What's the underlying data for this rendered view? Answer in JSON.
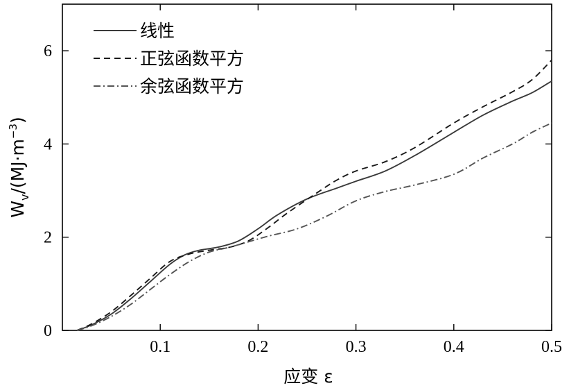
{
  "chart_data": {
    "type": "line",
    "xlabel": "应变 ε",
    "ylabel": "Wv/(MJ·m⁻³)",
    "ylabel_parts": {
      "main": "W",
      "sub": "v",
      "unit": "/(MJ·m",
      "sup": "−3",
      "close": ")"
    },
    "xlim": [
      0.0,
      0.5
    ],
    "ylim": [
      0,
      7
    ],
    "xticks": [
      0.1,
      0.2,
      0.3,
      0.4,
      0.5
    ],
    "xtick_labels": [
      "0.1",
      "0.2",
      "0.3",
      "0.4",
      "0.5"
    ],
    "yticks": [
      0,
      2,
      4,
      6
    ],
    "ytick_labels": [
      "0",
      "2",
      "4",
      "6"
    ],
    "grid": false,
    "legend_position": "top-left",
    "series": [
      {
        "name": "线性",
        "style": "solid",
        "color": "#3a3a3a",
        "points": [
          [
            0.015,
            0.0
          ],
          [
            0.03,
            0.12
          ],
          [
            0.05,
            0.35
          ],
          [
            0.07,
            0.68
          ],
          [
            0.09,
            1.05
          ],
          [
            0.11,
            1.42
          ],
          [
            0.125,
            1.62
          ],
          [
            0.14,
            1.72
          ],
          [
            0.16,
            1.79
          ],
          [
            0.18,
            1.92
          ],
          [
            0.2,
            2.18
          ],
          [
            0.22,
            2.48
          ],
          [
            0.25,
            2.82
          ],
          [
            0.28,
            3.05
          ],
          [
            0.3,
            3.2
          ],
          [
            0.33,
            3.42
          ],
          [
            0.36,
            3.75
          ],
          [
            0.4,
            4.25
          ],
          [
            0.43,
            4.62
          ],
          [
            0.46,
            4.92
          ],
          [
            0.48,
            5.1
          ],
          [
            0.5,
            5.35
          ]
        ]
      },
      {
        "name": "正弦函数平方",
        "style": "dashed",
        "color": "#1a1a1a",
        "points": [
          [
            0.015,
            0.0
          ],
          [
            0.03,
            0.14
          ],
          [
            0.05,
            0.4
          ],
          [
            0.07,
            0.75
          ],
          [
            0.09,
            1.12
          ],
          [
            0.11,
            1.48
          ],
          [
            0.13,
            1.64
          ],
          [
            0.15,
            1.72
          ],
          [
            0.17,
            1.78
          ],
          [
            0.19,
            1.92
          ],
          [
            0.21,
            2.2
          ],
          [
            0.23,
            2.52
          ],
          [
            0.26,
            2.95
          ],
          [
            0.28,
            3.22
          ],
          [
            0.3,
            3.42
          ],
          [
            0.33,
            3.62
          ],
          [
            0.36,
            3.92
          ],
          [
            0.4,
            4.45
          ],
          [
            0.43,
            4.8
          ],
          [
            0.46,
            5.12
          ],
          [
            0.48,
            5.38
          ],
          [
            0.5,
            5.8
          ]
        ]
      },
      {
        "name": "余弦函数平方",
        "style": "dashdot",
        "color": "#555555",
        "points": [
          [
            0.015,
            0.0
          ],
          [
            0.03,
            0.1
          ],
          [
            0.05,
            0.3
          ],
          [
            0.07,
            0.56
          ],
          [
            0.09,
            0.88
          ],
          [
            0.11,
            1.2
          ],
          [
            0.13,
            1.48
          ],
          [
            0.15,
            1.68
          ],
          [
            0.17,
            1.78
          ],
          [
            0.19,
            1.9
          ],
          [
            0.21,
            2.02
          ],
          [
            0.24,
            2.18
          ],
          [
            0.27,
            2.45
          ],
          [
            0.3,
            2.78
          ],
          [
            0.33,
            2.98
          ],
          [
            0.36,
            3.12
          ],
          [
            0.4,
            3.35
          ],
          [
            0.43,
            3.7
          ],
          [
            0.46,
            4.0
          ],
          [
            0.48,
            4.25
          ],
          [
            0.5,
            4.45
          ]
        ]
      }
    ]
  }
}
